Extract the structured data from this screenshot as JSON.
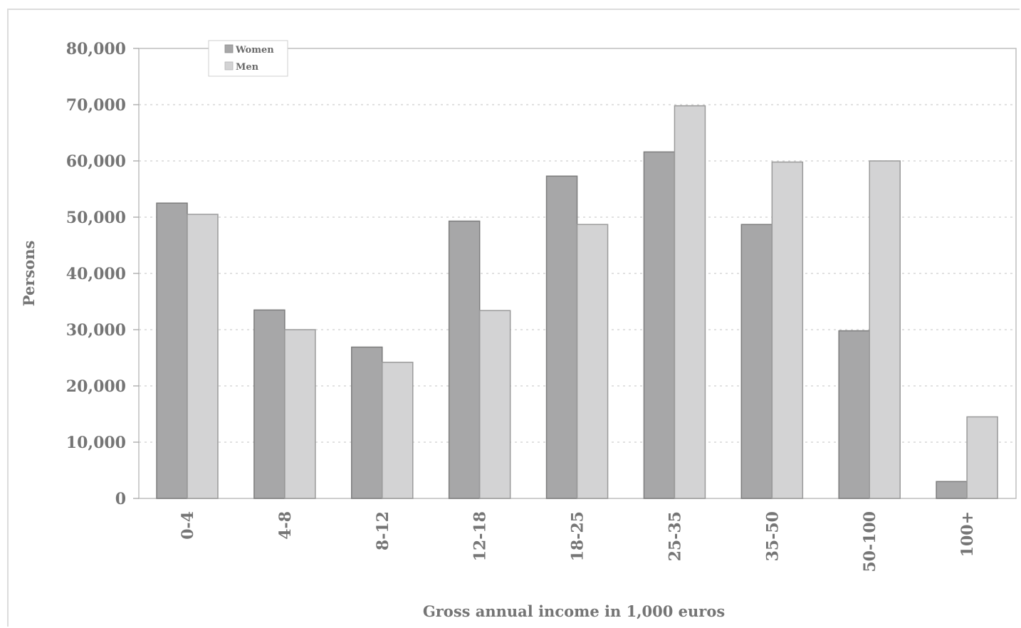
{
  "chart_data": {
    "type": "bar",
    "categories": [
      "0-4",
      "4-8",
      "8-12",
      "12-18",
      "18-25",
      "25-35",
      "35-50",
      "50-100",
      "100+"
    ],
    "series": [
      {
        "name": "Women",
        "color": "#a7a7a8",
        "values": [
          52500,
          33500,
          26900,
          49300,
          57300,
          61600,
          48700,
          29800,
          3000
        ]
      },
      {
        "name": "Men",
        "color": "#d3d3d4",
        "values": [
          50500,
          30000,
          24200,
          33400,
          48700,
          69800,
          59800,
          60000,
          14500
        ]
      }
    ],
    "y_ticks": [
      "0",
      "10,000",
      "20,000",
      "30,000",
      "40,000",
      "50,000",
      "60,000",
      "70,000",
      "80,000"
    ],
    "ylim": [
      0,
      80000
    ],
    "xlabel": "Gross annual income in 1,000 euros",
    "ylabel": "Persons",
    "grid": true,
    "legend_position": "top-left"
  }
}
